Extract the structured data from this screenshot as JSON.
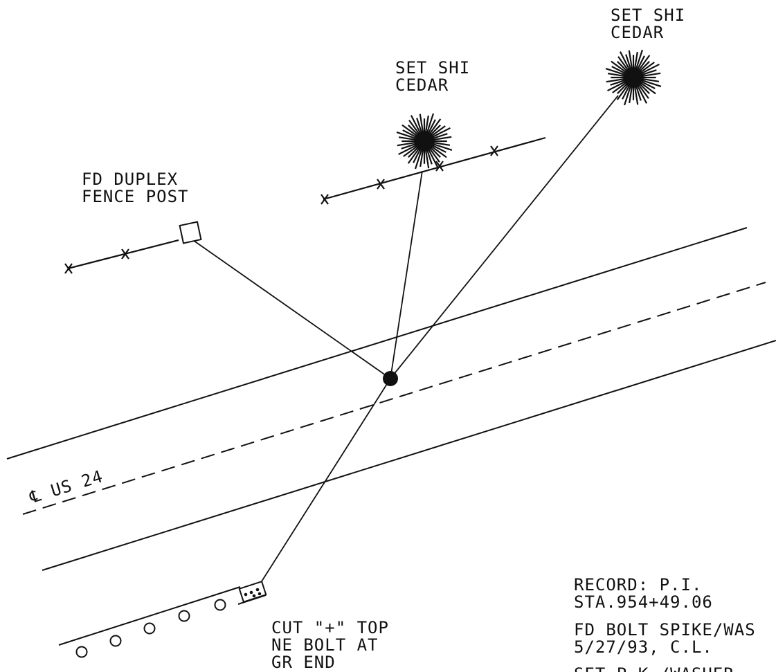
{
  "colors": {
    "ink": "#111111",
    "paper": "#ffffff"
  },
  "labels": {
    "cedar_right": {
      "line1": "SET SHI",
      "line2": "CEDAR"
    },
    "cedar_center": {
      "line1": "SET SHI",
      "line2": "CEDAR"
    },
    "fence_post": {
      "line1": "FD DUPLEX",
      "line2": "FENCE POST"
    },
    "centerline": "℄ US 24",
    "cut_top": {
      "line1": "CUT \"+\" TOP",
      "line2": "NE BOLT AT",
      "line3": "GR END"
    },
    "record": {
      "line1": "RECORD: P.I.",
      "line2": "STA.954+49.06"
    },
    "found_bolt": {
      "line1": "FD BOLT SPIKE/WAS",
      "line2": "5/27/93, C.L."
    },
    "set_pk": "SET P.K./WASHER"
  },
  "icons": {
    "tree": "cedar-tree-icon",
    "fence_post": "fence-post-square-icon",
    "control_point": "control-point-dot-icon",
    "fence_x": "fence-x-icon",
    "guardrail_post": "guardrail-post-circle-icon"
  }
}
